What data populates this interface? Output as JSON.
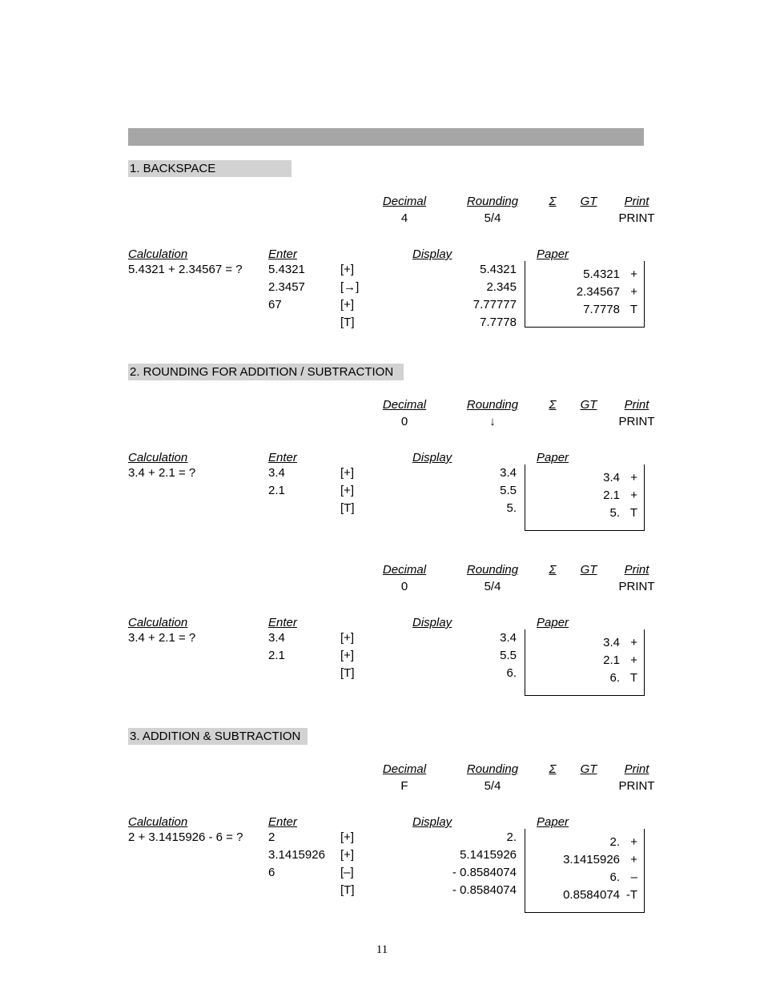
{
  "page_number": "11",
  "sections": [
    {
      "title": "1. BACKSPACE",
      "examples": [
        {
          "settings": {
            "decimal": "4",
            "rounding": "5/4",
            "sigma": "",
            "gt": "",
            "print": "PRINT"
          },
          "calculation": "5.4321 + 2.34567 = ?",
          "rows": [
            {
              "enter": "5.4321",
              "key": "[+]",
              "display": "5.4321"
            },
            {
              "enter": "2.3457",
              "key": "[→]",
              "display": "2.345"
            },
            {
              "enter": "67",
              "key": "[+]",
              "display": "7.77777"
            },
            {
              "enter": "",
              "key": "[T]",
              "display": "7.7778"
            }
          ],
          "paper": [
            {
              "num": "5.4321",
              "sym": "+"
            },
            {
              "num": "",
              "sym": ""
            },
            {
              "num": "2.34567",
              "sym": "+"
            },
            {
              "num": "7.7778",
              "sym": "T"
            }
          ]
        }
      ]
    },
    {
      "title": "2. ROUNDING FOR ADDITION / SUBTRACTION",
      "examples": [
        {
          "settings": {
            "decimal": "0",
            "rounding": "↓",
            "sigma": "",
            "gt": "",
            "print": "PRINT"
          },
          "calculation": "3.4 + 2.1 = ?",
          "rows": [
            {
              "enter": "3.4",
              "key": "[+]",
              "display": "3.4"
            },
            {
              "enter": "2.1",
              "key": "[+]",
              "display": "5.5"
            },
            {
              "enter": "",
              "key": "[T]",
              "display": "5."
            }
          ],
          "paper": [
            {
              "num": "3.4",
              "sym": "+"
            },
            {
              "num": "2.1",
              "sym": "+"
            },
            {
              "num": "5.",
              "sym": "T"
            }
          ]
        },
        {
          "settings": {
            "decimal": "0",
            "rounding": "5/4",
            "sigma": "",
            "gt": "",
            "print": "PRINT"
          },
          "calculation": "3.4 + 2.1 = ?",
          "rows": [
            {
              "enter": "3.4",
              "key": "[+]",
              "display": "3.4"
            },
            {
              "enter": "2.1",
              "key": "[+]",
              "display": "5.5"
            },
            {
              "enter": "",
              "key": "[T]",
              "display": "6."
            }
          ],
          "paper": [
            {
              "num": "3.4",
              "sym": "+"
            },
            {
              "num": "2.1",
              "sym": "+"
            },
            {
              "num": "6.",
              "sym": "T"
            }
          ]
        }
      ]
    },
    {
      "title": "3. ADDITION & SUBTRACTION",
      "examples": [
        {
          "settings": {
            "decimal": "F",
            "rounding": "5/4",
            "sigma": "",
            "gt": "",
            "print": "PRINT"
          },
          "calculation": "2 + 3.1415926 - 6 = ?",
          "rows": [
            {
              "enter": "2",
              "key": "[+]",
              "display": "2."
            },
            {
              "enter": "3.1415926",
              "key": "[+]",
              "display": "5.1415926"
            },
            {
              "enter": "6",
              "key": "[–]",
              "display": "-  0.8584074"
            },
            {
              "enter": "",
              "key": "[T]",
              "display": "-  0.8584074"
            }
          ],
          "paper": [
            {
              "num": "2.",
              "sym": "+"
            },
            {
              "num": "3.1415926",
              "sym": "+"
            },
            {
              "num": "6.",
              "sym": "–"
            },
            {
              "num": "0.8584074",
              "sym": "-T"
            }
          ]
        }
      ]
    }
  ],
  "labels": {
    "decimal": "Decimal",
    "rounding": "Rounding",
    "sigma": "Σ",
    "gt": "GT",
    "print": "Print",
    "calculation": "Calculation",
    "enter": "Enter",
    "display": "Display",
    "paper": "Paper"
  }
}
